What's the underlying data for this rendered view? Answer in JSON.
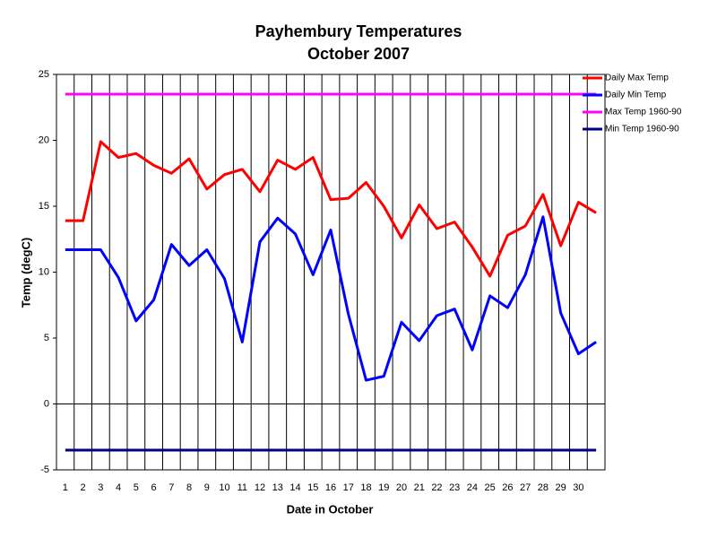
{
  "chart_data": {
    "type": "line",
    "title": "Payhembury Temperatures",
    "subtitle": "October 2007",
    "x_label": "Date in October",
    "y_label": "Temp (degC)",
    "categories": [
      "1",
      "2",
      "3",
      "4",
      "5",
      "6",
      "7",
      "8",
      "9",
      "10",
      "11",
      "12",
      "13",
      "14",
      "15",
      "16",
      "17",
      "18",
      "19",
      "20",
      "21",
      "22",
      "23",
      "24",
      "25",
      "26",
      "27",
      "28",
      "29",
      "30",
      null
    ],
    "series": [
      {
        "name": "Daily Max Temp",
        "color": "#ff0000",
        "values": [
          13.9,
          13.9,
          19.9,
          18.7,
          19.0,
          18.1,
          17.5,
          18.6,
          16.3,
          17.4,
          17.8,
          16.1,
          18.5,
          17.8,
          18.7,
          15.5,
          15.6,
          16.8,
          15.0,
          12.6,
          15.1,
          13.3,
          13.8,
          11.9,
          9.7,
          12.8,
          13.5,
          15.9,
          12.0,
          15.3,
          14.5
        ]
      },
      {
        "name": "Daily Min Temp",
        "color": "#0000ff",
        "values": [
          11.7,
          11.7,
          11.7,
          9.6,
          6.3,
          7.9,
          12.1,
          10.5,
          11.7,
          9.5,
          4.7,
          12.3,
          14.1,
          12.9,
          9.8,
          13.2,
          6.8,
          1.8,
          2.1,
          6.2,
          4.8,
          6.7,
          7.2,
          4.1,
          8.2,
          7.3,
          9.8,
          14.2,
          6.9,
          3.8,
          4.7
        ]
      },
      {
        "name": "Max Temp 1960-90",
        "color": "#ff00ff",
        "values": [
          23.5,
          23.5,
          23.5,
          23.5,
          23.5,
          23.5,
          23.5,
          23.5,
          23.5,
          23.5,
          23.5,
          23.5,
          23.5,
          23.5,
          23.5,
          23.5,
          23.5,
          23.5,
          23.5,
          23.5,
          23.5,
          23.5,
          23.5,
          23.5,
          23.5,
          23.5,
          23.5,
          23.5,
          23.5,
          23.5,
          23.5
        ]
      },
      {
        "name": "Min Temp 1960-90",
        "color": "#000080",
        "values": [
          -3.5,
          -3.5,
          -3.5,
          -3.5,
          -3.5,
          -3.5,
          -3.5,
          -3.5,
          -3.5,
          -3.5,
          -3.5,
          -3.5,
          -3.5,
          -3.5,
          -3.5,
          -3.5,
          -3.5,
          -3.5,
          -3.5,
          -3.5,
          -3.5,
          -3.5,
          -3.5,
          -3.5,
          -3.5,
          -3.5,
          -3.5,
          -3.5,
          -3.5,
          -3.5,
          -3.5
        ]
      }
    ],
    "ylim": [
      -5,
      25
    ],
    "yticks": [
      -5,
      0,
      5,
      10,
      15,
      20,
      25
    ],
    "category_dividers": true,
    "legend": "right"
  }
}
